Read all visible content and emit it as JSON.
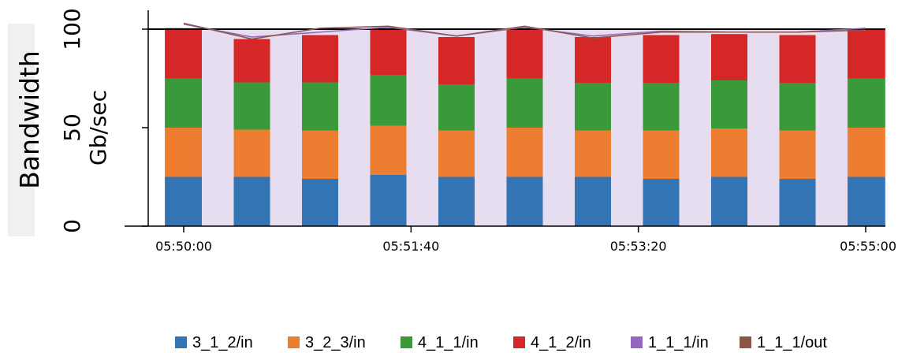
{
  "chart_data": {
    "type": "bar",
    "stacked": true,
    "ylabel_outer": "Bandwidth",
    "ylabel": "Gb/sec",
    "y_ticks": [
      "0",
      "50",
      "100"
    ],
    "ylim": [
      0,
      115
    ],
    "reference_line": 100,
    "x_tick_labels": [
      "05:50:00",
      "05:51:40",
      "05:53:20",
      "05:55:00"
    ],
    "x_tick_times": [
      0,
      100,
      200,
      300
    ],
    "x": [
      0,
      30,
      60,
      90,
      120,
      150,
      180,
      210,
      240,
      270,
      300
    ],
    "series": [
      {
        "name": "3_1_2/in",
        "color": "#3274b4",
        "values": [
          25,
          25,
          24,
          26,
          25,
          25,
          25,
          24,
          25,
          24,
          25
        ]
      },
      {
        "name": "3_2_3/in",
        "color": "#ed7d31",
        "values": [
          25,
          24,
          24.5,
          25,
          23.5,
          25,
          23.5,
          24.5,
          24.5,
          24.5,
          25
        ]
      },
      {
        "name": "4_1_1/in",
        "color": "#3a9a3a",
        "values": [
          25,
          24,
          24.5,
          25.5,
          23.5,
          25,
          24,
          24,
          24.5,
          24,
          25
        ]
      },
      {
        "name": "4_1_2/in",
        "color": "#d62728",
        "values": [
          25.5,
          22,
          24,
          24,
          24,
          25.5,
          23.5,
          24.5,
          23.5,
          24.5,
          25
        ]
      }
    ],
    "lines": [
      {
        "name": "1_1_1/in",
        "color": "#9467bd",
        "values": [
          102.5,
          96,
          98.5,
          101,
          96.5,
          101,
          96.5,
          99,
          98.5,
          98.5,
          100.5
        ]
      },
      {
        "name": "1_1_1/out",
        "color": "#8c564b",
        "values": [
          103,
          95,
          100.5,
          101.5,
          96.5,
          101.5,
          95.5,
          98.5,
          98.5,
          98.5,
          99.5
        ]
      }
    ],
    "gap_color": "#e6ddf0"
  }
}
